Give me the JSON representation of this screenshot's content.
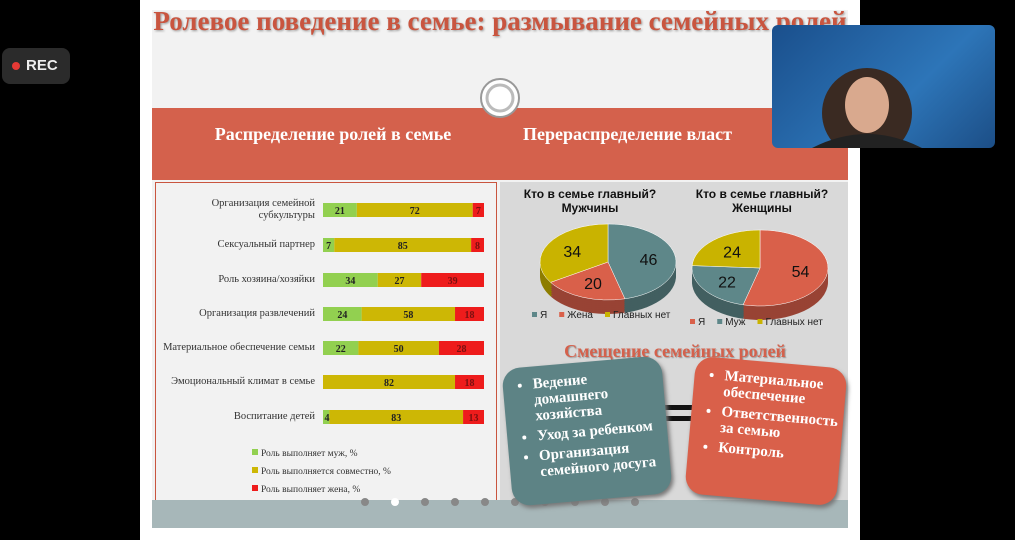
{
  "ui": {
    "rec": "REC"
  },
  "slide": {
    "title": "Ролевое поведение в семье: размывание семейных ролей",
    "left_header": "Распределение ролей в семье",
    "right_header": "Перераспределение власт",
    "shift": {
      "title": "Смещение семейных ролей",
      "left_items": [
        "Ведение домашнего хозяйства",
        "Уход за ребенком",
        "Организация семейного досуга"
      ],
      "right_items": [
        "Материальное обеспечение",
        "Ответственность за семью",
        "Контроль"
      ]
    }
  },
  "chart_data": [
    {
      "type": "bar",
      "orientation": "horizontal",
      "stacked": true,
      "categories": [
        "Организация семейной субкультуры",
        "Сексуальный партнер",
        "Роль хозяина/хозяйки",
        "Организация развлечений",
        "Материальное обеспечение семьи",
        "Эмоциональный климат в семье",
        "Воспитание  детей"
      ],
      "xlim": [
        0,
        100
      ],
      "series": [
        {
          "name": "Роль выполняет муж, %",
          "color": "#92d050",
          "values": [
            21,
            7,
            34,
            24,
            22,
            0,
            4
          ]
        },
        {
          "name": "Роль выполняется совместно, %",
          "color": "#cdb705",
          "values": [
            72,
            85,
            27,
            58,
            50,
            82,
            83
          ]
        },
        {
          "name": "Роль выполняет жена, %",
          "color": "#ee1c1c",
          "values": [
            7,
            8,
            39,
            18,
            28,
            18,
            13
          ]
        }
      ]
    },
    {
      "type": "pie",
      "title": "Кто  в семье главный? Мужчины",
      "categories": [
        "Я",
        "Жена",
        "Главных нет"
      ],
      "values": [
        46,
        20,
        34
      ],
      "colors": [
        "#5e8789",
        "#d9604a",
        "#c9b300"
      ]
    },
    {
      "type": "pie",
      "title": "Кто  в семье главный?Женщины",
      "categories": [
        "Я",
        "Муж",
        "Главных нет"
      ],
      "values": [
        54,
        22,
        24
      ],
      "colors": [
        "#d9604a",
        "#5e8789",
        "#c9b300"
      ]
    }
  ]
}
